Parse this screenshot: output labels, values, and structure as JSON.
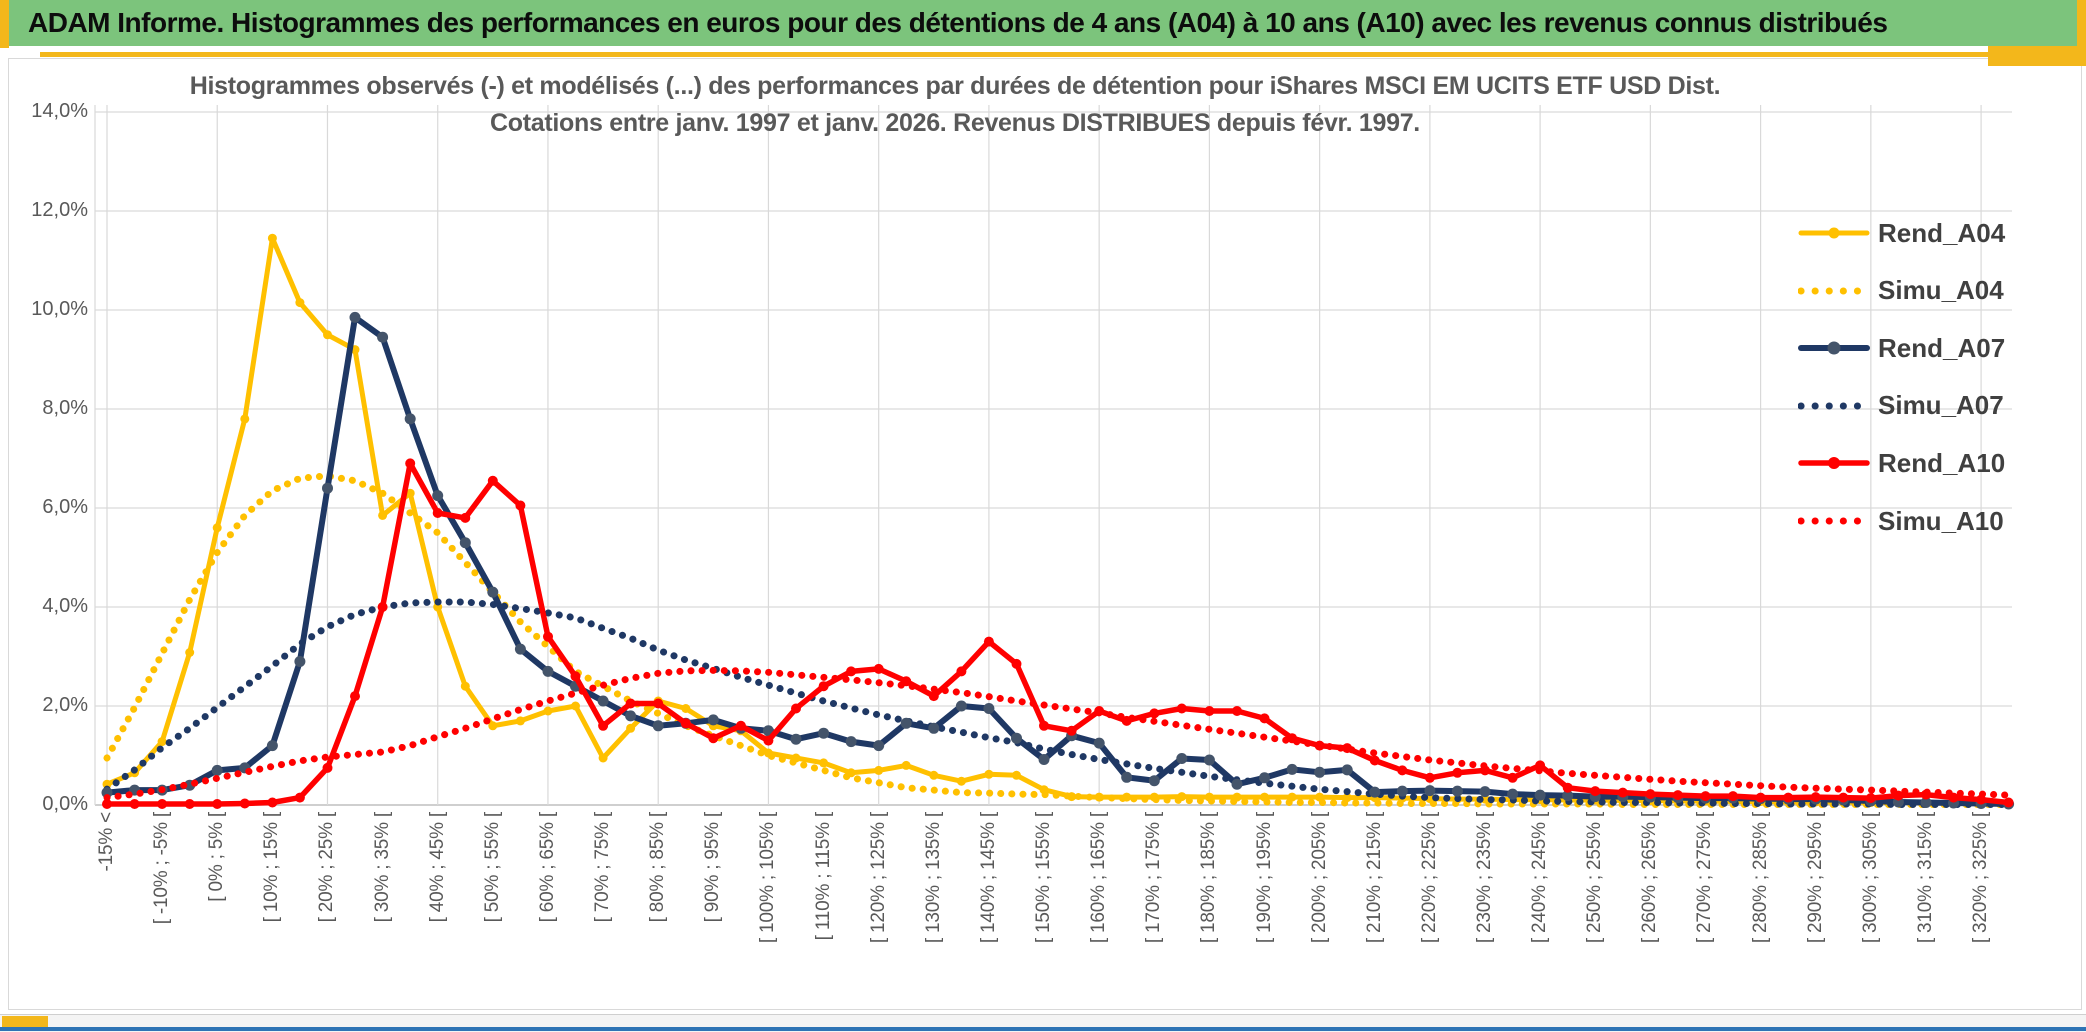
{
  "banner": {
    "text": "ADAM Informe. Histogrammes des performances en euros pour des détentions de 4 ans (A04) à 10 ans (A10) avec les revenus connus distribués"
  },
  "chart": {
    "title_line1": "Histogrammes observés (-) et modélisés (...) des performances par durées de détention pour iShares MSCI EM UCITS ETF USD Dist.",
    "title_line2": "Cotations entre janv. 1997 et janv. 2026. Revenus DISTRIBUES depuis févr. 1997."
  },
  "chart_data": {
    "type": "line",
    "title": "Histogrammes observés (-) et modélisés (...) des performances par durées de détention pour iShares MSCI EM UCITS ETF USD Dist. Cotations entre janv. 1997 et janv. 2026. Revenus DISTRIBUES depuis févr. 1997.",
    "xlabel": "",
    "ylabel": "",
    "ylim": [
      0,
      14
    ],
    "ytick_step": 2,
    "ytick_labels": [
      "0,0%",
      "2,0%",
      "4,0%",
      "6,0%",
      "8,0%",
      "10,0%",
      "12,0%",
      "14,0%"
    ],
    "grid": true,
    "legend_position": "right",
    "bins": 70,
    "label_every": 2,
    "x_labels": [
      "-15% <",
      "[ -10% ; -5% [",
      "[ 0% ; 5% [",
      "[ 10% ; 15% [",
      "[ 20% ; 25% [",
      "[ 30% ; 35% [",
      "[ 40% ; 45% [",
      "[ 50% ; 55% [",
      "[ 60% ; 65% [",
      "[ 70% ; 75% [",
      "[ 80% ; 85% [",
      "[ 90% ; 95% [",
      "[ 100% ; 105% [",
      "[ 110% ; 115% [",
      "[ 120% ; 125% [",
      "[ 130% ; 135% [",
      "[ 140% ; 145% [",
      "[ 150% ; 155% [",
      "[ 160% ; 165% [",
      "[ 170% ; 175% [",
      "[ 180% ; 185% [",
      "[ 190% ; 195% [",
      "[ 200% ; 205% [",
      "[ 210% ; 215% [",
      "[ 220% ; 225% [",
      "[ 230% ; 235% [",
      "[ 240% ; 245% [",
      "[ 250% ; 255% [",
      "[ 260% ; 265% [",
      "[ 270% ; 275% [",
      "[ 280% ; 285% [",
      "[ 290% ; 295% [",
      "[ 300% ; 305% [",
      "[ 310% ; 315% [",
      "[ 320% ; 325% ["
    ],
    "series": [
      {
        "name": "Rend_A04",
        "color": "#FFC000",
        "style": "solid",
        "marker_color": "#FFC000",
        "line_width": 5,
        "marker_radius": 4.5,
        "values": [
          0.42,
          0.65,
          1.28,
          3.08,
          5.6,
          7.8,
          11.45,
          10.15,
          9.5,
          9.2,
          5.85,
          6.3,
          4.0,
          2.4,
          1.6,
          1.7,
          1.9,
          2.0,
          0.95,
          1.55,
          2.1,
          1.95,
          1.6,
          1.5,
          1.05,
          0.95,
          0.85,
          0.65,
          0.7,
          0.8,
          0.6,
          0.48,
          0.62,
          0.6,
          0.31,
          0.17,
          0.16,
          0.16,
          0.16,
          0.17,
          0.16,
          0.16,
          0.16,
          0.16,
          0.16,
          0.15,
          0.15,
          0.14,
          0.13,
          0.12,
          0.12,
          0.11,
          0.11,
          0.1,
          0.1,
          0.09,
          0.09,
          0.08,
          0.08,
          0.07,
          0.07,
          0.06,
          0.06,
          0.06,
          0.05,
          0.05,
          0.05,
          0.04,
          0.04,
          0.03
        ]
      },
      {
        "name": "Simu_A04",
        "color": "#FFC000",
        "style": "dotted",
        "line_width": 7,
        "values": [
          0.95,
          1.97,
          3.06,
          4.15,
          5.1,
          5.85,
          6.35,
          6.6,
          6.65,
          6.55,
          6.3,
          5.9,
          5.5,
          4.9,
          4.3,
          3.7,
          3.2,
          2.7,
          2.4,
          2.1,
          1.85,
          1.6,
          1.4,
          1.2,
          1.0,
          0.85,
          0.7,
          0.55,
          0.45,
          0.35,
          0.3,
          0.25,
          0.24,
          0.22,
          0.21,
          0.18,
          0.15,
          0.13,
          0.11,
          0.09,
          0.08,
          0.07,
          0.06,
          0.05,
          0.05,
          0.04,
          0.04,
          0.03,
          0.03,
          0.03,
          0.02,
          0.02,
          0.02,
          0.02,
          0.02,
          0.01,
          0.01,
          0.01,
          0.01,
          0.01,
          0.01,
          0.01,
          0.01,
          0.01,
          0.01,
          0.01,
          0.01,
          0.01,
          0.01,
          0.01
        ]
      },
      {
        "name": "Rend_A07",
        "color": "#1F3864",
        "style": "solid",
        "marker_color": "#44546A",
        "line_width": 6,
        "marker_radius": 5.5,
        "values": [
          0.25,
          0.3,
          0.3,
          0.4,
          0.7,
          0.75,
          1.2,
          2.9,
          6.4,
          9.85,
          9.45,
          7.8,
          6.25,
          5.3,
          4.3,
          3.15,
          2.7,
          2.4,
          2.1,
          1.8,
          1.6,
          1.65,
          1.72,
          1.55,
          1.5,
          1.33,
          1.45,
          1.28,
          1.2,
          1.65,
          1.55,
          2.0,
          1.95,
          1.35,
          0.92,
          1.4,
          1.25,
          0.56,
          0.49,
          0.94,
          0.91,
          0.42,
          0.55,
          0.72,
          0.66,
          0.71,
          0.26,
          0.28,
          0.29,
          0.28,
          0.27,
          0.22,
          0.2,
          0.19,
          0.17,
          0.17,
          0.16,
          0.15,
          0.14,
          0.14,
          0.13,
          0.12,
          0.12,
          0.1,
          0.08,
          0.06,
          0.05,
          0.04,
          0.03,
          0.02
        ]
      },
      {
        "name": "Simu_A07",
        "color": "#1F3864",
        "style": "dotted",
        "line_width": 7,
        "values": [
          0.32,
          0.71,
          1.16,
          1.55,
          1.97,
          2.39,
          2.81,
          3.25,
          3.6,
          3.85,
          4.0,
          4.08,
          4.1,
          4.1,
          4.05,
          3.97,
          3.88,
          3.78,
          3.57,
          3.37,
          3.13,
          2.93,
          2.76,
          2.58,
          2.42,
          2.26,
          2.1,
          1.96,
          1.82,
          1.7,
          1.58,
          1.47,
          1.36,
          1.26,
          1.13,
          1.02,
          0.92,
          0.83,
          0.74,
          0.66,
          0.58,
          0.51,
          0.44,
          0.38,
          0.32,
          0.27,
          0.22,
          0.18,
          0.15,
          0.13,
          0.11,
          0.1,
          0.08,
          0.07,
          0.06,
          0.05,
          0.05,
          0.04,
          0.04,
          0.03,
          0.03,
          0.02,
          0.02,
          0.02,
          0.02,
          0.01,
          0.01,
          0.01,
          0.01,
          0.01
        ]
      },
      {
        "name": "Rend_A10",
        "color": "#FF0000",
        "style": "solid",
        "marker_color": "#FF0000",
        "line_width": 5.5,
        "marker_radius": 5,
        "values": [
          0.02,
          0.02,
          0.02,
          0.02,
          0.02,
          0.03,
          0.05,
          0.15,
          0.75,
          2.2,
          4.0,
          6.9,
          5.9,
          5.8,
          6.55,
          6.05,
          3.4,
          2.6,
          1.6,
          2.05,
          2.05,
          1.65,
          1.35,
          1.6,
          1.3,
          1.95,
          2.4,
          2.7,
          2.75,
          2.5,
          2.2,
          2.7,
          3.3,
          2.85,
          1.6,
          1.5,
          1.9,
          1.7,
          1.85,
          1.95,
          1.9,
          1.9,
          1.75,
          1.35,
          1.2,
          1.15,
          0.9,
          0.7,
          0.55,
          0.65,
          0.7,
          0.55,
          0.8,
          0.35,
          0.28,
          0.25,
          0.22,
          0.2,
          0.18,
          0.18,
          0.15,
          0.15,
          0.16,
          0.15,
          0.14,
          0.19,
          0.21,
          0.15,
          0.11,
          0.05
        ]
      },
      {
        "name": "Simu_A10",
        "color": "#FF0000",
        "style": "dotted",
        "line_width": 7,
        "values": [
          0.15,
          0.22,
          0.31,
          0.42,
          0.54,
          0.66,
          0.78,
          0.89,
          0.97,
          1.02,
          1.07,
          1.2,
          1.38,
          1.55,
          1.74,
          1.93,
          2.1,
          2.26,
          2.42,
          2.56,
          2.66,
          2.71,
          2.72,
          2.71,
          2.68,
          2.63,
          2.58,
          2.53,
          2.47,
          2.41,
          2.34,
          2.27,
          2.19,
          2.1,
          2.02,
          1.94,
          1.86,
          1.77,
          1.69,
          1.61,
          1.53,
          1.45,
          1.37,
          1.29,
          1.21,
          1.13,
          1.05,
          0.98,
          0.91,
          0.85,
          0.79,
          0.74,
          0.69,
          0.64,
          0.6,
          0.56,
          0.52,
          0.48,
          0.45,
          0.42,
          0.39,
          0.36,
          0.34,
          0.32,
          0.3,
          0.28,
          0.26,
          0.24,
          0.22,
          0.2
        ]
      }
    ]
  },
  "colors": {
    "banner_green": "#7CC47C",
    "accent_gold": "#F3B71B",
    "grid": "#D9D9D9",
    "axis": "#BFBFBF",
    "text_gray": "#595959",
    "bottom_blue": "#2E74B5"
  }
}
